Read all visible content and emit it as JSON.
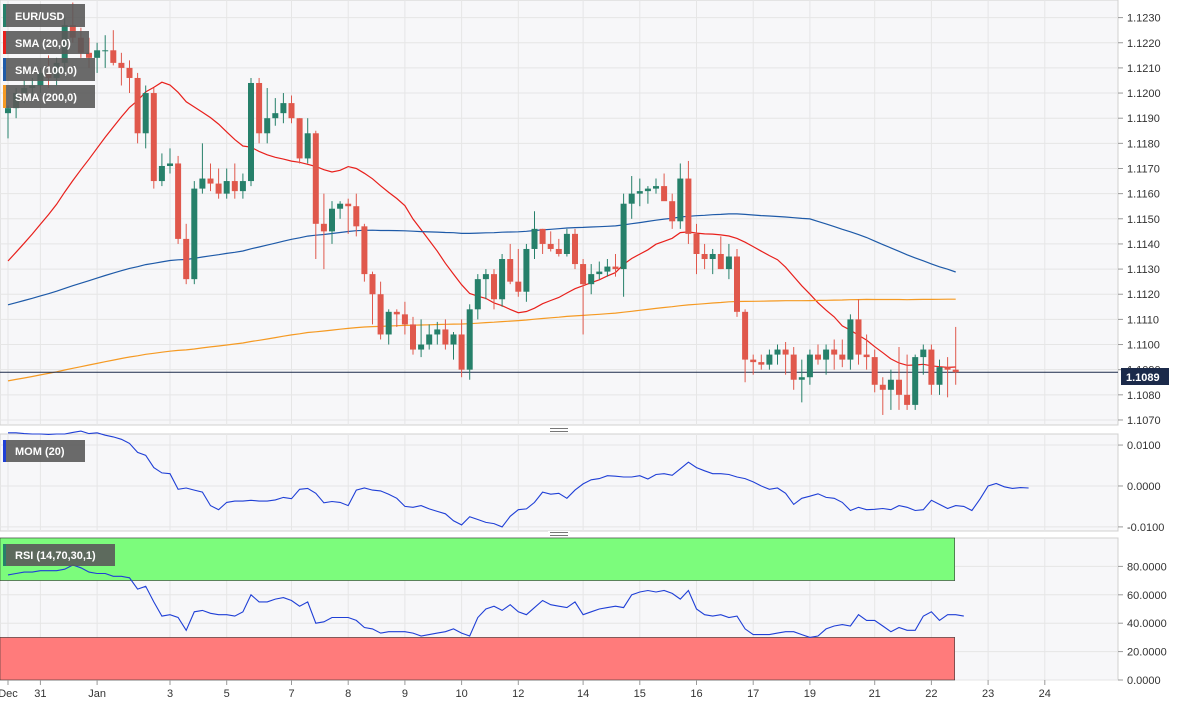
{
  "colors": {
    "bull": "#26806a",
    "bear": "#e0584c",
    "sma20": "#e8201c",
    "sma100": "#1e5aa8",
    "sma200": "#f59a23",
    "indicator": "#1f3fd6",
    "rsi_overbought": "#7cfc7c",
    "rsi_oversold": "#ff7b7b",
    "last_price_bg": "#1b2a4a",
    "grid": "#e6e6e6",
    "legend_bg": "#5a5a5a"
  },
  "legends": {
    "price": "EUR/USD",
    "sma20": "SMA (20,0)",
    "sma100": "SMA (100,0)",
    "sma200": "SMA (200,0)",
    "mom": "MOM (20)",
    "rsi": "RSI (14,70,30,1)"
  },
  "last_price": "1.1089",
  "chart_data": [
    {
      "type": "candlestick",
      "title": "EUR/USD",
      "ylim": [
        1.1068,
        1.1237
      ],
      "yticks": [
        "1.1070",
        "1.1080",
        "1.1090",
        "1.1100",
        "1.1110",
        "1.1120",
        "1.1130",
        "1.1140",
        "1.1150",
        "1.1160",
        "1.1170",
        "1.1180",
        "1.1190",
        "1.1200",
        "1.1210",
        "1.1220",
        "1.1230"
      ],
      "xticks": [
        {
          "i": 0,
          "label": "Dec"
        },
        {
          "i": 4,
          "label": "31"
        },
        {
          "i": 11,
          "label": "Jan"
        },
        {
          "i": 20,
          "label": "3"
        },
        {
          "i": 27,
          "label": "5"
        },
        {
          "i": 35,
          "label": "7"
        },
        {
          "i": 42,
          "label": "8"
        },
        {
          "i": 49,
          "label": "9"
        },
        {
          "i": 56,
          "label": "10"
        },
        {
          "i": 63,
          "label": "12"
        },
        {
          "i": 71,
          "label": "14"
        },
        {
          "i": 78,
          "label": "15"
        },
        {
          "i": 85,
          "label": "16"
        },
        {
          "i": 92,
          "label": "17"
        },
        {
          "i": 99,
          "label": "19"
        },
        {
          "i": 107,
          "label": "21"
        },
        {
          "i": 114,
          "label": "22"
        },
        {
          "i": 121,
          "label": "23"
        },
        {
          "i": 128,
          "label": "24"
        }
      ],
      "candles": [
        [
          1.1192,
          1.1195,
          1.1182,
          1.1194
        ],
        [
          1.1194,
          1.1202,
          1.119,
          1.12
        ],
        [
          1.12,
          1.1205,
          1.1196,
          1.1202
        ],
        [
          1.1202,
          1.1206,
          1.1198,
          1.1203
        ],
        [
          1.1203,
          1.121,
          1.12,
          1.1208
        ],
        [
          1.1208,
          1.1215,
          1.1202,
          1.1206
        ],
        [
          1.1206,
          1.1214,
          1.1203,
          1.1212
        ],
        [
          1.1212,
          1.123,
          1.1208,
          1.1227
        ],
        [
          1.1227,
          1.1236,
          1.122,
          1.1222
        ],
        [
          1.1222,
          1.1226,
          1.1214,
          1.1216
        ],
        [
          1.1216,
          1.1222,
          1.121,
          1.1214
        ],
        [
          1.1214,
          1.122,
          1.1208,
          1.1217
        ],
        [
          1.1217,
          1.1223,
          1.121,
          1.1217
        ],
        [
          1.1217,
          1.1225,
          1.1211,
          1.1212
        ],
        [
          1.1212,
          1.1216,
          1.1203,
          1.121
        ],
        [
          1.121,
          1.1213,
          1.12,
          1.1206
        ],
        [
          1.1206,
          1.1208,
          1.118,
          1.1184
        ],
        [
          1.1184,
          1.1203,
          1.1178,
          1.12
        ],
        [
          1.12,
          1.1202,
          1.1162,
          1.1165
        ],
        [
          1.1165,
          1.1176,
          1.1163,
          1.1171
        ],
        [
          1.1171,
          1.1178,
          1.1168,
          1.1172
        ],
        [
          1.1172,
          1.1175,
          1.114,
          1.1142
        ],
        [
          1.1142,
          1.1148,
          1.1124,
          1.1126
        ],
        [
          1.1126,
          1.1165,
          1.1124,
          1.1162
        ],
        [
          1.1162,
          1.118,
          1.116,
          1.1166
        ],
        [
          1.1166,
          1.1172,
          1.1161,
          1.1164
        ],
        [
          1.1164,
          1.117,
          1.1158,
          1.116
        ],
        [
          1.116,
          1.117,
          1.1158,
          1.1165
        ],
        [
          1.1165,
          1.1172,
          1.1158,
          1.1161
        ],
        [
          1.1161,
          1.1168,
          1.1158,
          1.1165
        ],
        [
          1.1165,
          1.1206,
          1.1163,
          1.1204
        ],
        [
          1.1204,
          1.1206,
          1.118,
          1.1184
        ],
        [
          1.1184,
          1.1202,
          1.118,
          1.119
        ],
        [
          1.119,
          1.1198,
          1.1187,
          1.1192
        ],
        [
          1.1192,
          1.12,
          1.1188,
          1.1196
        ],
        [
          1.1196,
          1.1199,
          1.1188,
          1.119
        ],
        [
          1.119,
          1.119,
          1.1172,
          1.1174
        ],
        [
          1.1174,
          1.119,
          1.1172,
          1.1184
        ],
        [
          1.1184,
          1.1185,
          1.1134,
          1.1148
        ],
        [
          1.1148,
          1.116,
          1.113,
          1.1145
        ],
        [
          1.1145,
          1.1157,
          1.114,
          1.1154
        ],
        [
          1.1154,
          1.1157,
          1.115,
          1.1156
        ],
        [
          1.1156,
          1.1158,
          1.1144,
          1.1155
        ],
        [
          1.1155,
          1.116,
          1.1143,
          1.1147
        ],
        [
          1.1147,
          1.1148,
          1.1125,
          1.1128
        ],
        [
          1.1128,
          1.1129,
          1.1108,
          1.112
        ],
        [
          1.112,
          1.1125,
          1.1102,
          1.1104
        ],
        [
          1.1104,
          1.1114,
          1.11,
          1.1113
        ],
        [
          1.1113,
          1.1114,
          1.1107,
          1.1112
        ],
        [
          1.1112,
          1.1117,
          1.1104,
          1.1108
        ],
        [
          1.1108,
          1.1111,
          1.1096,
          1.1098
        ],
        [
          1.1098,
          1.111,
          1.1095,
          1.11
        ],
        [
          1.11,
          1.1108,
          1.1098,
          1.1104
        ],
        [
          1.1104,
          1.1109,
          1.11,
          1.1106
        ],
        [
          1.1106,
          1.111,
          1.1098,
          1.11
        ],
        [
          1.11,
          1.1105,
          1.1094,
          1.1104
        ],
        [
          1.1104,
          1.111,
          1.1087,
          1.109
        ],
        [
          1.109,
          1.1116,
          1.1086,
          1.1114
        ],
        [
          1.1114,
          1.1128,
          1.111,
          1.1126
        ],
        [
          1.1126,
          1.113,
          1.1118,
          1.1128
        ],
        [
          1.1128,
          1.113,
          1.1114,
          1.1118
        ],
        [
          1.1118,
          1.1136,
          1.1115,
          1.1134
        ],
        [
          1.1134,
          1.114,
          1.1124,
          1.1125
        ],
        [
          1.1125,
          1.1138,
          1.1119,
          1.1121
        ],
        [
          1.1121,
          1.114,
          1.1117,
          1.1138
        ],
        [
          1.1138,
          1.1153,
          1.1134,
          1.1146
        ],
        [
          1.1146,
          1.1146,
          1.1136,
          1.114
        ],
        [
          1.114,
          1.1145,
          1.1137,
          1.1138
        ],
        [
          1.1138,
          1.1142,
          1.1135,
          1.1136
        ],
        [
          1.1136,
          1.1146,
          1.1135,
          1.1144
        ],
        [
          1.1144,
          1.1146,
          1.113,
          1.1132
        ],
        [
          1.1132,
          1.1134,
          1.1104,
          1.1124
        ],
        [
          1.1124,
          1.1132,
          1.112,
          1.1128
        ],
        [
          1.1128,
          1.1133,
          1.1126,
          1.1129
        ],
        [
          1.1129,
          1.1134,
          1.1127,
          1.1131
        ],
        [
          1.1131,
          1.1136,
          1.1127,
          1.113
        ],
        [
          1.113,
          1.116,
          1.1119,
          1.1156
        ],
        [
          1.1156,
          1.1167,
          1.115,
          1.116
        ],
        [
          1.116,
          1.1166,
          1.1155,
          1.1161
        ],
        [
          1.1161,
          1.1163,
          1.1156,
          1.1162
        ],
        [
          1.1162,
          1.1166,
          1.116,
          1.1163
        ],
        [
          1.1163,
          1.1168,
          1.1158,
          1.1157
        ],
        [
          1.1157,
          1.116,
          1.1146,
          1.1149
        ],
        [
          1.1149,
          1.1172,
          1.1146,
          1.1166
        ],
        [
          1.1166,
          1.1173,
          1.114,
          1.1144
        ],
        [
          1.1144,
          1.1148,
          1.1128,
          1.1136
        ],
        [
          1.1136,
          1.114,
          1.113,
          1.1134
        ],
        [
          1.1134,
          1.1138,
          1.1128,
          1.1136
        ],
        [
          1.1136,
          1.1143,
          1.113,
          1.113
        ],
        [
          1.113,
          1.114,
          1.1126,
          1.1135
        ],
        [
          1.1135,
          1.1138,
          1.1111,
          1.1113
        ],
        [
          1.1113,
          1.1114,
          1.1085,
          1.1094
        ],
        [
          1.1094,
          1.1096,
          1.1088,
          1.1093
        ],
        [
          1.1093,
          1.1096,
          1.109,
          1.1092
        ],
        [
          1.1092,
          1.1098,
          1.109,
          1.1096
        ],
        [
          1.1096,
          1.11,
          1.1092,
          1.1098
        ],
        [
          1.1098,
          1.1101,
          1.1088,
          1.1096
        ],
        [
          1.1096,
          1.1099,
          1.1082,
          1.1086
        ],
        [
          1.1086,
          1.1094,
          1.1077,
          1.1087
        ],
        [
          1.1087,
          1.1098,
          1.1084,
          1.1096
        ],
        [
          1.1096,
          1.11,
          1.1092,
          1.1094
        ],
        [
          1.1094,
          1.11,
          1.1088,
          1.1098
        ],
        [
          1.1098,
          1.1102,
          1.109,
          1.1096
        ],
        [
          1.1096,
          1.1102,
          1.1091,
          1.1094
        ],
        [
          1.1094,
          1.1112,
          1.109,
          1.111
        ],
        [
          1.111,
          1.1118,
          1.1092,
          1.1096
        ],
        [
          1.1096,
          1.1104,
          1.109,
          1.1095
        ],
        [
          1.1095,
          1.1098,
          1.1081,
          1.1084
        ],
        [
          1.1084,
          1.1087,
          1.1072,
          1.1082
        ],
        [
          1.1082,
          1.109,
          1.1074,
          1.1086
        ],
        [
          1.1086,
          1.1099,
          1.1074,
          1.108
        ],
        [
          1.108,
          1.1096,
          1.1074,
          1.1076
        ],
        [
          1.1076,
          1.1096,
          1.1074,
          1.1095
        ],
        [
          1.1095,
          1.11,
          1.1088,
          1.1098
        ],
        [
          1.1098,
          1.11,
          1.108,
          1.1084
        ],
        [
          1.1084,
          1.1094,
          1.108,
          1.1091
        ],
        [
          1.1091,
          1.1095,
          1.1079,
          1.109
        ],
        [
          1.109,
          1.1107,
          1.1084,
          1.1089
        ]
      ]
    },
    {
      "type": "line",
      "title": "MOM (20)",
      "ylim": [
        -0.011,
        0.0127
      ],
      "yticks": [
        "-0.0100",
        "0.0000",
        "0.0100"
      ],
      "series": [
        {
          "name": "MOM (20)",
          "values": [
            0.013,
            0.013,
            0.0128,
            0.0127,
            0.0127,
            0.0126,
            0.0127,
            0.0127,
            0.0131,
            0.0134,
            0.0128,
            0.013,
            0.0124,
            0.012,
            0.0114,
            0.0104,
            0.0082,
            0.0075,
            0.0045,
            0.0032,
            0.003,
            -0.0008,
            -0.0005,
            -0.001,
            -0.0015,
            -0.0048,
            -0.0058,
            -0.004,
            -0.0037,
            -0.0037,
            -0.0035,
            -0.0037,
            -0.0037,
            -0.0034,
            -0.0028,
            -0.0031,
            -0.0008,
            -0.0006,
            -0.0018,
            -0.0041,
            -0.0038,
            -0.004,
            -0.0048,
            -0.001,
            -0.0005,
            -0.001,
            -0.0012,
            -0.002,
            -0.003,
            -0.005,
            -0.0052,
            -0.0048,
            -0.0056,
            -0.0062,
            -0.0068,
            -0.0085,
            -0.0095,
            -0.0075,
            -0.0082,
            -0.0089,
            -0.0092,
            -0.01,
            -0.0074,
            -0.0058,
            -0.0056,
            -0.004,
            -0.0015,
            -0.002,
            -0.0018,
            -0.003,
            -0.001,
            0.0005,
            0.0015,
            0.0018,
            0.0025,
            0.0024,
            0.0022,
            0.0022,
            0.0025,
            0.0017,
            0.0028,
            0.003,
            0.0026,
            0.0042,
            0.0058,
            0.0045,
            0.0037,
            0.003,
            0.003,
            0.0028,
            0.0022,
            0.0018,
            0.001,
            0.0,
            -0.0008,
            -0.0005,
            -0.0018,
            -0.0045,
            -0.003,
            -0.0025,
            -0.0019,
            -0.0028,
            -0.003,
            -0.004,
            -0.006,
            -0.0052,
            -0.0058,
            -0.0057,
            -0.0055,
            -0.0058,
            -0.0048,
            -0.0052,
            -0.006,
            -0.0058,
            -0.0035,
            -0.0045,
            -0.0055,
            -0.0048,
            -0.005,
            -0.006,
            -0.0032,
            0.0,
            0.0006,
            -0.0002,
            -0.0006,
            -0.0004,
            -0.0005
          ]
        }
      ]
    },
    {
      "type": "line",
      "title": "RSI (14,70,30,1)",
      "ylim": [
        0,
        100
      ],
      "yticks": [
        "0.0000",
        "20.0000",
        "40.0000",
        "60.0000",
        "80.0000"
      ],
      "bands": {
        "overbought": [
          70,
          100
        ],
        "oversold": [
          0,
          30
        ]
      },
      "series": [
        {
          "name": "RSI (14,70,30,1)",
          "values": [
            74,
            75,
            76,
            76,
            77,
            77,
            77,
            78,
            81,
            79,
            76,
            75,
            75,
            73,
            73,
            72,
            64,
            66,
            55,
            45,
            46,
            44,
            35,
            48,
            49,
            47,
            46,
            46,
            45,
            48,
            60,
            55,
            55,
            57,
            58,
            56,
            52,
            55,
            40,
            41,
            44,
            44,
            44,
            42,
            37,
            36,
            33,
            34,
            34,
            34,
            33,
            31,
            32,
            33,
            34,
            36,
            33,
            31,
            44,
            50,
            52,
            49,
            53,
            48,
            46,
            51,
            56,
            53,
            52,
            51,
            55,
            46,
            48,
            50,
            51,
            52,
            51,
            60,
            62,
            63,
            62,
            63,
            61,
            57,
            63,
            50,
            46,
            45,
            46,
            44,
            45,
            36,
            32,
            32,
            32,
            33,
            34,
            34,
            32,
            30,
            31,
            36,
            38,
            39,
            38,
            46,
            42,
            42,
            38,
            34,
            37,
            35,
            35,
            45,
            48,
            42,
            46,
            46,
            45
          ]
        }
      ]
    }
  ]
}
